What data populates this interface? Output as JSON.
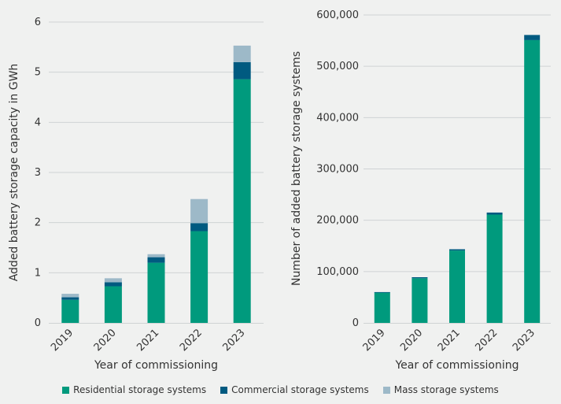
{
  "colors": {
    "residential": "#009a7d",
    "commercial": "#005a80",
    "mass": "#9db9c8",
    "grid": "#cfd3d4",
    "axis": "#666666",
    "text": "#333333"
  },
  "legend": {
    "residential": "Residential storage systems",
    "commercial": "Commercial storage systems",
    "mass": "Mass storage systems"
  },
  "chart_data": [
    {
      "type": "bar",
      "stacked": true,
      "title": "",
      "xlabel": "Year of commissioning",
      "ylabel": "Added battery storage capacity in GWh",
      "categories": [
        "2019",
        "2020",
        "2021",
        "2022",
        "2023"
      ],
      "ylim": [
        0,
        6
      ],
      "yticks": [
        "0",
        "1",
        "2",
        "3",
        "4",
        "5",
        "6"
      ],
      "grid": true,
      "series": [
        {
          "name": "Residential storage systems",
          "key": "residential",
          "values": [
            0.46,
            0.73,
            1.2,
            1.83,
            4.86
          ]
        },
        {
          "name": "Commercial storage systems",
          "key": "commercial",
          "values": [
            0.05,
            0.08,
            0.11,
            0.16,
            0.34
          ]
        },
        {
          "name": "Mass storage systems",
          "key": "mass",
          "values": [
            0.07,
            0.08,
            0.06,
            0.48,
            0.33
          ]
        }
      ]
    },
    {
      "type": "bar",
      "stacked": true,
      "title": "",
      "xlabel": "Year of commissioning",
      "ylabel": "Number of added battery storage systems",
      "categories": [
        "2019",
        "2020",
        "2021",
        "2022",
        "2023"
      ],
      "ylim": [
        0,
        600000
      ],
      "yticks": [
        "0",
        "100,000",
        "200,000",
        "300,000",
        "400,000",
        "500,000",
        "600,000"
      ],
      "grid": true,
      "series": [
        {
          "name": "Residential storage systems",
          "key": "residential",
          "values": [
            59500,
            87000,
            141000,
            211000,
            551000
          ]
        },
        {
          "name": "Commercial storage systems",
          "key": "commercial",
          "values": [
            500,
            2000,
            2500,
            4000,
            10000
          ]
        },
        {
          "name": "Mass storage systems",
          "key": "mass",
          "values": [
            0,
            0,
            0,
            0,
            0
          ]
        }
      ]
    }
  ]
}
